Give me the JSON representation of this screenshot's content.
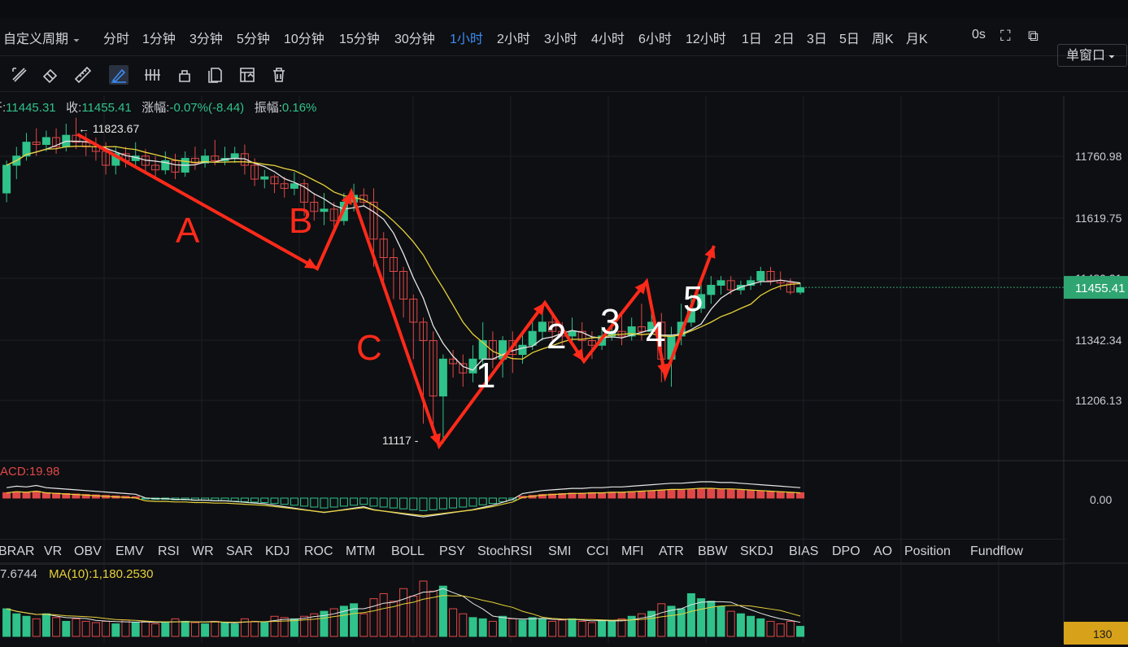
{
  "periods": [
    {
      "label": "自定义周期",
      "caret": "⏷"
    },
    {
      "label": "分时"
    },
    {
      "label": "1分钟"
    },
    {
      "label": "3分钟"
    },
    {
      "label": "5分钟"
    },
    {
      "label": "10分钟"
    },
    {
      "label": "15分钟"
    },
    {
      "label": "30分钟"
    },
    {
      "label": "1小时",
      "active": true
    },
    {
      "label": "2小时"
    },
    {
      "label": "3小时"
    },
    {
      "label": "4小时"
    },
    {
      "label": "6小时"
    },
    {
      "label": "12小时"
    },
    {
      "label": "1日"
    },
    {
      "label": "2日"
    },
    {
      "label": "3日"
    },
    {
      "label": "5日"
    },
    {
      "label": "周K"
    },
    {
      "label": "月K"
    }
  ],
  "toolbar_right": {
    "time_label": "0s",
    "window_select": "单窗口"
  },
  "info_line": {
    "open_label": "开:",
    "open": "11445.31",
    "close_label": "收:",
    "close": "11455.41",
    "change_label": "涨幅:",
    "change": "-0.07%(-8.44)",
    "amp_label": "振幅:",
    "amp": "0.16%"
  },
  "macd_label": "ACD:19.98",
  "volume_labels": {
    "mavol5": "7.6744",
    "ma10": "MA(10):1,180.2530"
  },
  "indicator_tabs": [
    "BRAR",
    "VR",
    "OBV",
    "EMV",
    "RSI",
    "WR",
    "SAR",
    "KDJ",
    "ROC",
    "MTM",
    "BOLL",
    "PSY",
    "StochRSI",
    "SMI",
    "CCI",
    "MFI",
    "ATR",
    "BBW",
    "SKDJ",
    "BIAS",
    "DPO",
    "AO",
    "Position",
    "Fundflow"
  ],
  "colors": {
    "up": "#2fc28a",
    "down": "#e04848",
    "bg": "#0e0f12",
    "grid": "#1c1f25",
    "accent": "#3b8cf3",
    "ma_white": "#e6e6e6",
    "ma_yellow": "#e7d23a",
    "annot": "#ff2a1a",
    "price_tag": "#2fa572",
    "vol_tag": "#d7a21a"
  },
  "chart_data": {
    "type": "candlestick",
    "price_axis_ticks": [
      "11760.98",
      "11619.75",
      "11480.21",
      "11342.34",
      "11206.13"
    ],
    "macd_axis_ticks": [
      "0.00"
    ],
    "current_price": "11455.41",
    "current_volume": "130",
    "high_marker": "11823.67",
    "low_marker": "11117",
    "ylim": [
      11080,
      11870
    ],
    "annotations": [
      "A",
      "B",
      "C",
      "1",
      "2",
      "3",
      "4",
      "5"
    ],
    "candles": [
      [
        11660,
        11720,
        11640,
        11730
      ],
      [
        11720,
        11740,
        11690,
        11760
      ],
      [
        11740,
        11770,
        11730,
        11790
      ],
      [
        11770,
        11765,
        11740,
        11800
      ],
      [
        11765,
        11780,
        11750,
        11795
      ],
      [
        11780,
        11760,
        11745,
        11800
      ],
      [
        11760,
        11785,
        11750,
        11810
      ],
      [
        11785,
        11770,
        11755,
        11823
      ],
      [
        11770,
        11760,
        11740,
        11790
      ],
      [
        11760,
        11750,
        11730,
        11780
      ],
      [
        11750,
        11720,
        11700,
        11770
      ],
      [
        11720,
        11745,
        11700,
        11760
      ],
      [
        11745,
        11730,
        11715,
        11760
      ],
      [
        11730,
        11740,
        11720,
        11770
      ],
      [
        11740,
        11720,
        11700,
        11755
      ],
      [
        11720,
        11710,
        11690,
        11740
      ],
      [
        11710,
        11730,
        11700,
        11750
      ],
      [
        11730,
        11705,
        11690,
        11745
      ],
      [
        11705,
        11735,
        11695,
        11750
      ],
      [
        11735,
        11725,
        11710,
        11760
      ],
      [
        11725,
        11740,
        11715,
        11755
      ],
      [
        11740,
        11730,
        11720,
        11775
      ],
      [
        11730,
        11735,
        11720,
        11760
      ],
      [
        11735,
        11745,
        11725,
        11760
      ],
      [
        11745,
        11720,
        11700,
        11765
      ],
      [
        11720,
        11690,
        11675,
        11735
      ],
      [
        11690,
        11695,
        11670,
        11710
      ],
      [
        11695,
        11680,
        11660,
        11700
      ],
      [
        11680,
        11670,
        11650,
        11695
      ],
      [
        11670,
        11680,
        11655,
        11705
      ],
      [
        11680,
        11640,
        11610,
        11690
      ],
      [
        11640,
        11620,
        11600,
        11660
      ],
      [
        11620,
        11625,
        11590,
        11660
      ],
      [
        11625,
        11600,
        11585,
        11640
      ],
      [
        11600,
        11640,
        11590,
        11660
      ],
      [
        11640,
        11655,
        11620,
        11680
      ],
      [
        11655,
        11640,
        11630,
        11670
      ],
      [
        11640,
        11560,
        11500,
        11670
      ],
      [
        11560,
        11520,
        11470,
        11575
      ],
      [
        11520,
        11490,
        11430,
        11540
      ],
      [
        11490,
        11430,
        11390,
        11500
      ],
      [
        11430,
        11380,
        11300,
        11440
      ],
      [
        11380,
        11340,
        11160,
        11390
      ],
      [
        11340,
        11220,
        11150,
        11360
      ],
      [
        11220,
        11300,
        11117,
        11310
      ],
      [
        11300,
        11290,
        11260,
        11320
      ],
      [
        11290,
        11270,
        11240,
        11310
      ],
      [
        11270,
        11300,
        11250,
        11330
      ],
      [
        11300,
        11340,
        11280,
        11380
      ],
      [
        11340,
        11300,
        11280,
        11360
      ],
      [
        11300,
        11340,
        11260,
        11350
      ],
      [
        11340,
        11310,
        11270,
        11360
      ],
      [
        11310,
        11330,
        11290,
        11360
      ],
      [
        11330,
        11360,
        11320,
        11390
      ],
      [
        11360,
        11380,
        11340,
        11410
      ],
      [
        11380,
        11360,
        11340,
        11400
      ],
      [
        11360,
        11350,
        11330,
        11380
      ],
      [
        11350,
        11360,
        11330,
        11390
      ],
      [
        11360,
        11340,
        11310,
        11380
      ],
      [
        11340,
        11330,
        11300,
        11360
      ],
      [
        11330,
        11350,
        11320,
        11370
      ],
      [
        11350,
        11360,
        11340,
        11380
      ],
      [
        11360,
        11350,
        11330,
        11400
      ],
      [
        11350,
        11370,
        11340,
        11390
      ],
      [
        11370,
        11360,
        11340,
        11420
      ],
      [
        11360,
        11380,
        11350,
        11400
      ],
      [
        11380,
        11300,
        11250,
        11400
      ],
      [
        11300,
        11350,
        11240,
        11370
      ],
      [
        11350,
        11380,
        11330,
        11420
      ],
      [
        11380,
        11410,
        11370,
        11440
      ],
      [
        11410,
        11440,
        11400,
        11470
      ],
      [
        11440,
        11460,
        11420,
        11480
      ],
      [
        11460,
        11470,
        11440,
        11480
      ],
      [
        11470,
        11450,
        11440,
        11480
      ],
      [
        11450,
        11460,
        11440,
        11470
      ],
      [
        11460,
        11470,
        11450,
        11480
      ],
      [
        11470,
        11490,
        11460,
        11500
      ],
      [
        11490,
        11470,
        11460,
        11500
      ],
      [
        11470,
        11465,
        11450,
        11490
      ],
      [
        11465,
        11445,
        11440,
        11475
      ],
      [
        11445,
        11455,
        11440,
        11465
      ]
    ],
    "volume": [
      22,
      18,
      16,
      14,
      18,
      15,
      12,
      14,
      12,
      11,
      12,
      10,
      13,
      11,
      12,
      10,
      11,
      14,
      12,
      11,
      10,
      12,
      11,
      10,
      14,
      12,
      11,
      16,
      15,
      14,
      16,
      18,
      20,
      22,
      24,
      26,
      18,
      30,
      34,
      28,
      38,
      32,
      44,
      36,
      40,
      22,
      18,
      15,
      14,
      12,
      16,
      14,
      13,
      15,
      14,
      12,
      13,
      14,
      12,
      11,
      13,
      12,
      14,
      16,
      18,
      20,
      26,
      24,
      22,
      34,
      30,
      28,
      24,
      20,
      18,
      16,
      14,
      12,
      10,
      12,
      8
    ],
    "macd_hist": [
      12,
      14,
      13,
      15,
      12,
      11,
      10,
      9,
      8,
      7,
      6,
      5,
      4,
      3,
      -2,
      -3,
      -3,
      -4,
      -4,
      -5,
      -5,
      -6,
      -6,
      -7,
      -8,
      -9,
      -10,
      -12,
      -14,
      -16,
      -18,
      -20,
      -22,
      -20,
      -18,
      -16,
      -14,
      -18,
      -20,
      -22,
      -24,
      -26,
      -28,
      -26,
      -24,
      -22,
      -20,
      -18,
      -15,
      -12,
      -8,
      -4,
      4,
      6,
      8,
      9,
      10,
      11,
      11,
      12,
      12,
      13,
      13,
      14,
      15,
      16,
      17,
      18,
      18,
      19,
      20,
      20,
      19,
      19,
      18,
      17,
      16,
      15,
      14,
      13,
      12
    ],
    "series_ma": [
      {
        "name": "MA white",
        "color": "#e6e6e6"
      },
      {
        "name": "MA yellow",
        "color": "#e7d23a"
      }
    ]
  }
}
